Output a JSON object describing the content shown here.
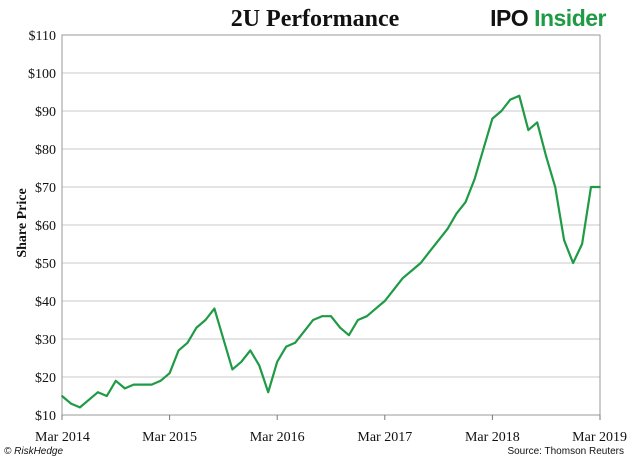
{
  "header": {
    "title": "2U Performance",
    "logo_part1": "IPO",
    "logo_part2": "Insider"
  },
  "footer": {
    "left": "© RiskHedge",
    "right": "Source: Thomson Reuters"
  },
  "chart_data": {
    "type": "line",
    "title": "2U Performance",
    "xlabel": "",
    "ylabel": "Share Price",
    "ylim": [
      10,
      110
    ],
    "y_ticks": [
      10,
      20,
      30,
      40,
      50,
      60,
      70,
      80,
      90,
      100,
      110
    ],
    "y_tick_labels": [
      "$10",
      "$20",
      "$30",
      "$40",
      "$50",
      "$60",
      "$70",
      "$80",
      "$90",
      "$100",
      "$110"
    ],
    "x_ticks": [
      "2014-03",
      "2015-03",
      "2016-03",
      "2017-03",
      "2018-03",
      "2019-03"
    ],
    "x_tick_labels": [
      "Mar 2014",
      "Mar 2015",
      "Mar 2016",
      "Mar 2017",
      "Mar 2018",
      "Mar 2019"
    ],
    "xlim": [
      "2014-03",
      "2019-03"
    ],
    "grid": true,
    "line_color": "#1f9a45",
    "series": [
      {
        "name": "",
        "x": [
          "2014-03",
          "2014-04",
          "2014-05",
          "2014-06",
          "2014-07",
          "2014-08",
          "2014-09",
          "2014-10",
          "2014-11",
          "2014-12",
          "2015-01",
          "2015-02",
          "2015-03",
          "2015-04",
          "2015-05",
          "2015-06",
          "2015-07",
          "2015-08",
          "2015-09",
          "2015-10",
          "2015-11",
          "2015-12",
          "2016-01",
          "2016-02",
          "2016-03",
          "2016-04",
          "2016-05",
          "2016-06",
          "2016-07",
          "2016-08",
          "2016-09",
          "2016-10",
          "2016-11",
          "2016-12",
          "2017-01",
          "2017-02",
          "2017-03",
          "2017-04",
          "2017-05",
          "2017-06",
          "2017-07",
          "2017-08",
          "2017-09",
          "2017-10",
          "2017-11",
          "2017-12",
          "2018-01",
          "2018-02",
          "2018-03",
          "2018-04",
          "2018-05",
          "2018-06",
          "2018-07",
          "2018-08",
          "2018-09",
          "2018-10",
          "2018-11",
          "2018-12",
          "2019-01",
          "2019-02",
          "2019-03"
        ],
        "values": [
          15,
          13,
          12,
          14,
          16,
          15,
          19,
          17,
          18,
          18,
          18,
          19,
          21,
          27,
          29,
          33,
          35,
          38,
          30,
          22,
          24,
          27,
          23,
          16,
          24,
          28,
          29,
          32,
          35,
          36,
          36,
          33,
          31,
          35,
          36,
          38,
          40,
          43,
          46,
          48,
          50,
          53,
          56,
          59,
          63,
          66,
          72,
          80,
          88,
          90,
          93,
          94,
          85,
          87,
          78,
          70,
          56,
          50,
          55,
          70,
          70
        ]
      }
    ]
  }
}
